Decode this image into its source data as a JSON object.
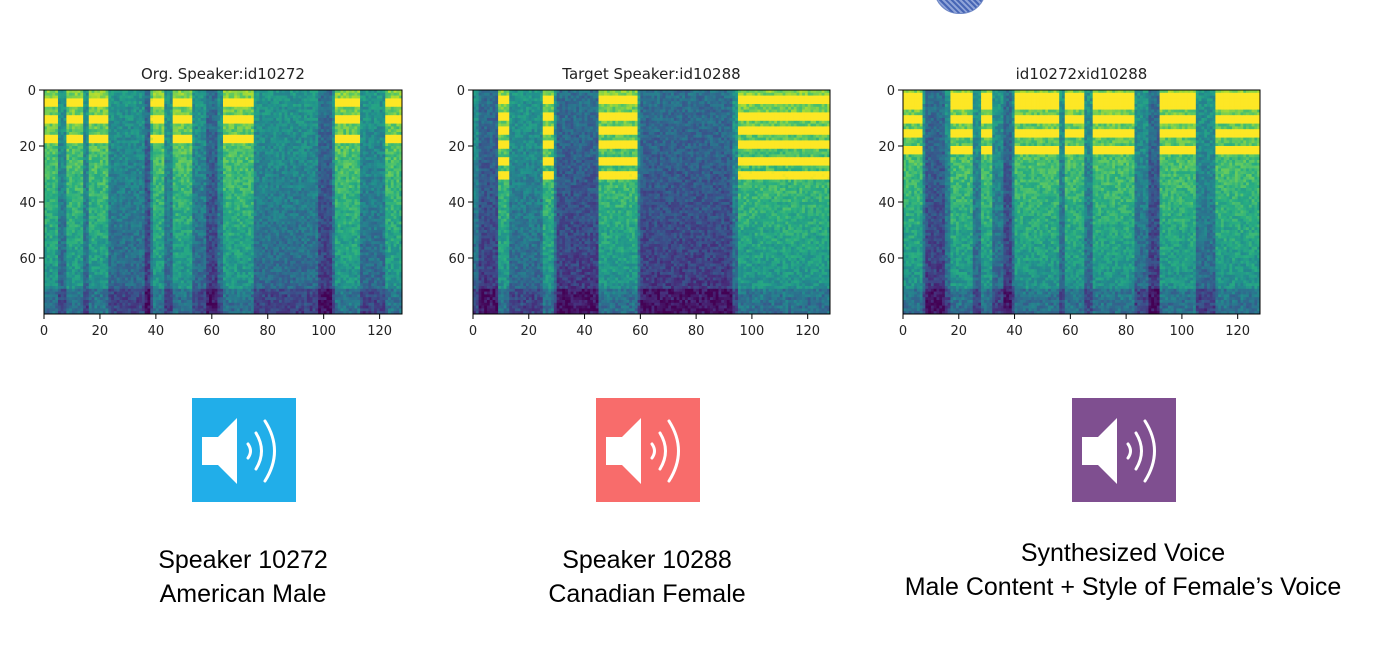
{
  "chart_data": [
    {
      "type": "heatmap",
      "title": "Org. Speaker:id10272",
      "x_ticks": [
        0,
        20,
        40,
        60,
        80,
        100,
        120
      ],
      "y_ticks": [
        0,
        20,
        40,
        60
      ],
      "xlim": [
        0,
        128
      ],
      "ylim": [
        80,
        0
      ],
      "colormap": "viridis",
      "bright_columns": [
        [
          0,
          4
        ],
        [
          8,
          13
        ],
        [
          16,
          22
        ],
        [
          38,
          42
        ],
        [
          46,
          52
        ],
        [
          64,
          74
        ],
        [
          104,
          112
        ],
        [
          122,
          127
        ]
      ],
      "dark_columns": [
        [
          36,
          38
        ],
        [
          58,
          61
        ],
        [
          98,
          102
        ]
      ],
      "harmonic_rows": [
        4,
        10,
        17
      ]
    },
    {
      "type": "heatmap",
      "title": "Target Speaker:id10288",
      "x_ticks": [
        0,
        20,
        40,
        60,
        80,
        100,
        120
      ],
      "y_ticks": [
        0,
        20,
        40,
        60
      ],
      "xlim": [
        0,
        128
      ],
      "ylim": [
        80,
        0
      ],
      "colormap": "viridis",
      "bright_columns": [
        [
          9,
          12
        ],
        [
          25,
          28
        ],
        [
          45,
          58
        ],
        [
          95,
          127
        ]
      ],
      "dark_columns": [
        [
          2,
          8
        ],
        [
          30,
          44
        ],
        [
          60,
          92
        ]
      ],
      "harmonic_rows": [
        3,
        9,
        14,
        19,
        25,
        30
      ]
    },
    {
      "type": "heatmap",
      "title": "id10272xid10288",
      "x_ticks": [
        0,
        20,
        40,
        60,
        80,
        100,
        120
      ],
      "y_ticks": [
        0,
        20,
        40,
        60
      ],
      "xlim": [
        0,
        128
      ],
      "ylim": [
        80,
        0
      ],
      "colormap": "viridis",
      "bright_columns": [
        [
          0,
          6
        ],
        [
          17,
          24
        ],
        [
          28,
          31
        ],
        [
          40,
          55
        ],
        [
          58,
          64
        ],
        [
          68,
          82
        ],
        [
          92,
          104
        ],
        [
          112,
          127
        ]
      ],
      "dark_columns": [
        [
          8,
          14
        ],
        [
          36,
          38
        ],
        [
          88,
          91
        ]
      ],
      "harmonic_rows": [
        2,
        5,
        10,
        15,
        21
      ]
    }
  ],
  "speakers": [
    {
      "line1": "Speaker 10272",
      "line2": "American Male",
      "icon": "speaker-icon",
      "color": "#21aee9"
    },
    {
      "line1": "Speaker 10288",
      "line2": "Canadian Female",
      "icon": "speaker-icon",
      "color": "#f86c6b"
    },
    {
      "line1": "Synthesized Voice",
      "line2": "Male Content + Style of Female’s Voice",
      "icon": "speaker-icon",
      "color": "#7f4f90"
    }
  ]
}
